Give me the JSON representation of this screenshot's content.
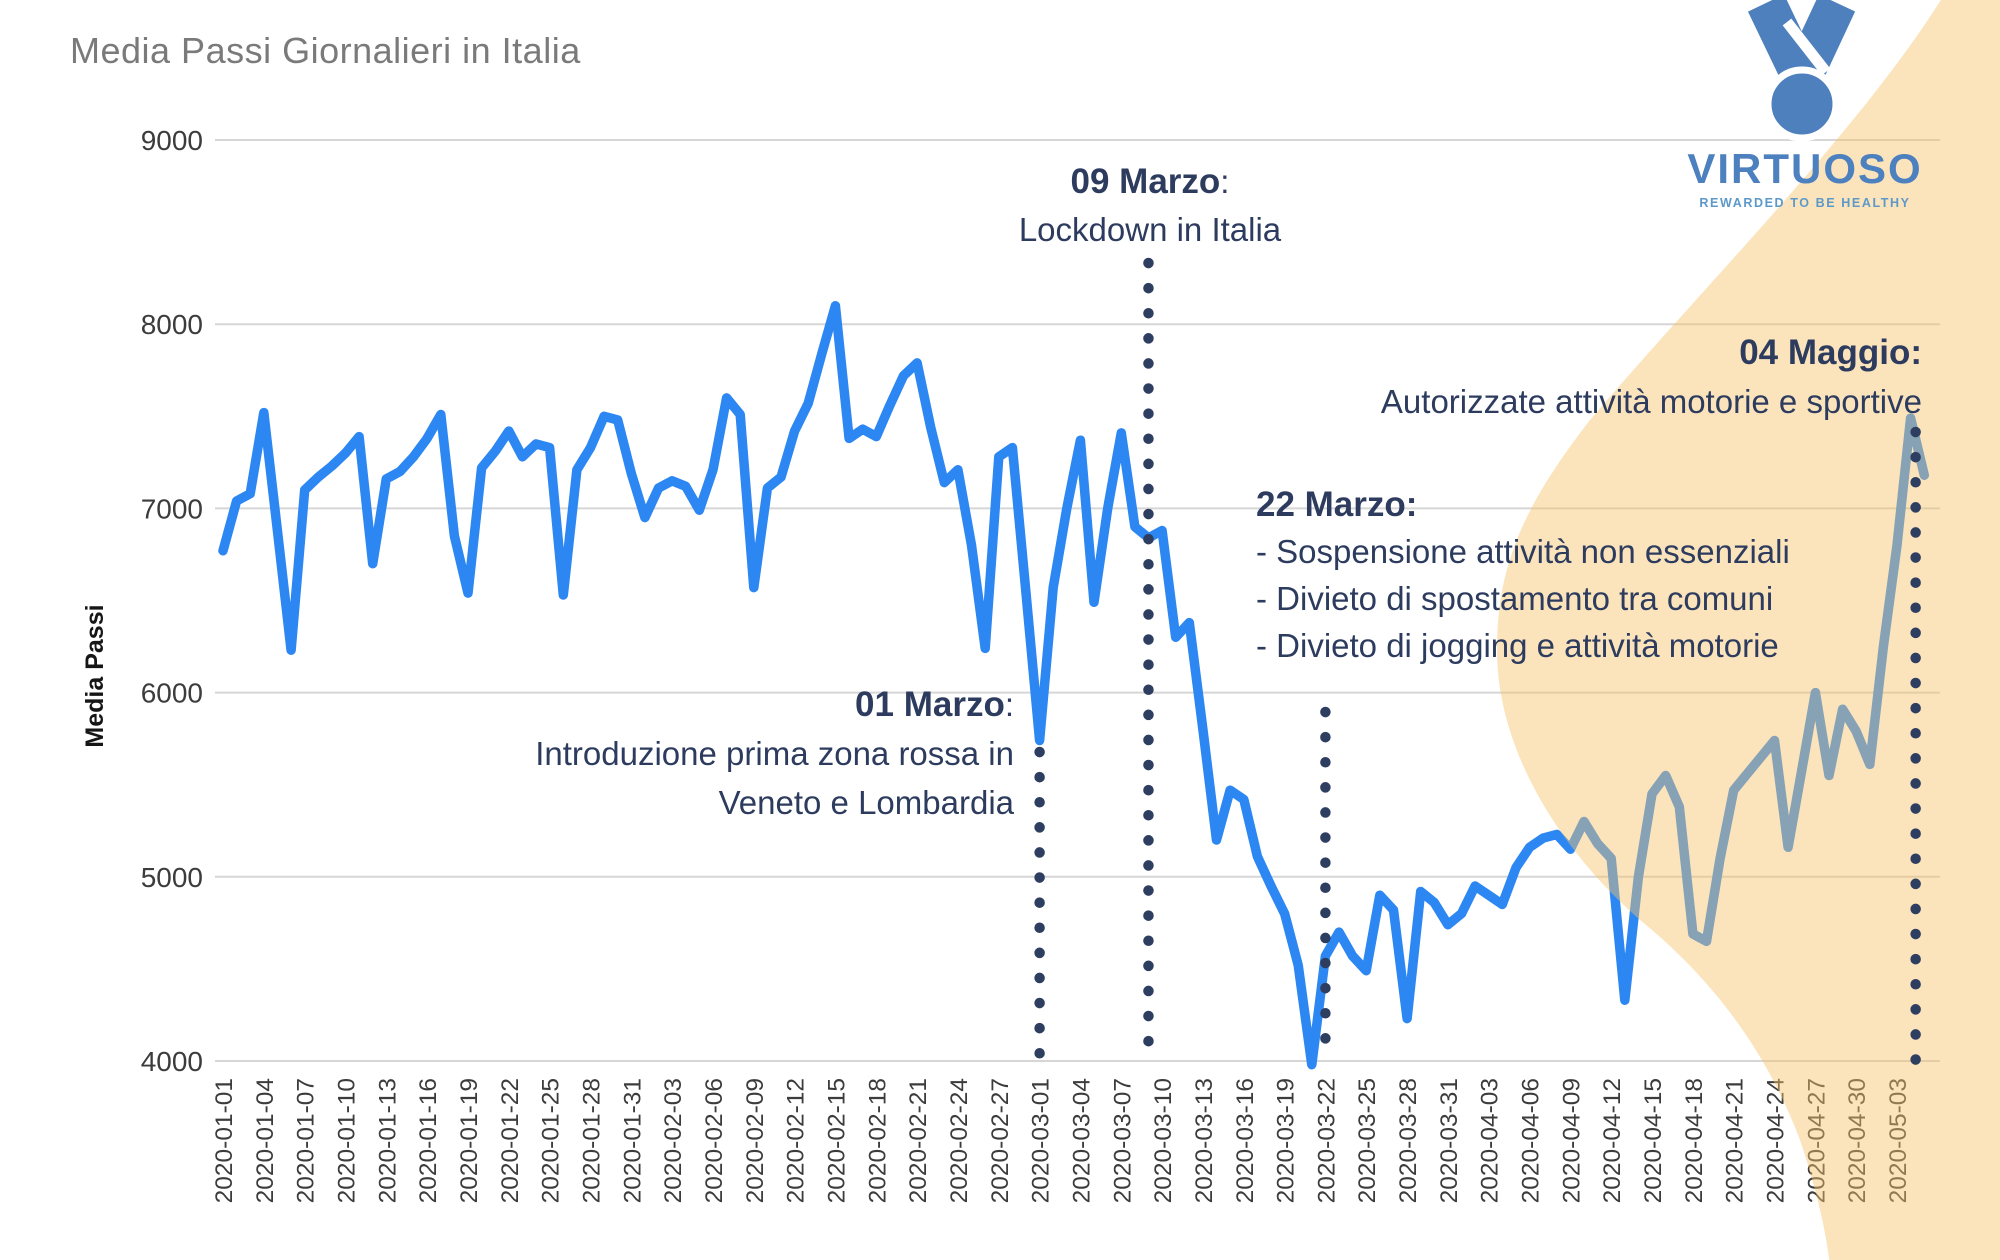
{
  "colors": {
    "line": "#2d87f2",
    "annotation_text": "#2d3c5e",
    "dotted_line": "#2e3e60",
    "highlight_blob": "rgba(246,196,106,0.45)",
    "grid": "#d6d6d6",
    "axis_text": "#3c3c3c",
    "title_text": "#7a7a7a",
    "brand_blue": "#4d80bf",
    "brand_tagline_blue": "#5c99c9"
  },
  "logo": {
    "brand": "VIRTUOSO",
    "tagline": "REWARDED TO BE HEALTHY",
    "icon": "medal-icon"
  },
  "events": [
    {
      "id": "zona-rossa",
      "date": "2020-03-01",
      "heading": "01 Marzo",
      "suffix": ":",
      "lines": [
        "Introduzione prima zona rossa in",
        "Veneto e Lombardia"
      ]
    },
    {
      "id": "lockdown",
      "date": "2020-03-09",
      "heading": "09 Marzo",
      "suffix": ":",
      "lines": [
        "Lockdown in Italia"
      ]
    },
    {
      "id": "restrizioni",
      "date": "2020-03-22",
      "heading": "22 Marzo",
      "suffix": ":",
      "lines": [
        "- Sospensione attività non essenziali",
        "- Divieto di spostamento tra comuni",
        "- Divieto di jogging e attività motorie"
      ]
    },
    {
      "id": "riapertura",
      "date": "2020-05-04",
      "heading": "04 Maggio",
      "suffix": ":",
      "lines": [
        "Autorizzate attività motorie e sportive"
      ]
    }
  ],
  "chart_data": {
    "type": "line",
    "title": "Media Passi Giornalieri in Italia",
    "ylabel": "Media Passi",
    "xlabel": "",
    "ylim": [
      4000,
      9000
    ],
    "yticks": [
      9000,
      8000,
      7000,
      6000,
      5000,
      4000
    ],
    "grid": true,
    "legend": false,
    "start_date": "2020-01-01",
    "end_date": "2020-05-05",
    "tick_every_days": 3,
    "tick_labels": [
      "2020-01-01",
      "2020-01-04",
      "2020-01-07",
      "2020-01-10",
      "2020-01-13",
      "2020-01-16",
      "2020-01-19",
      "2020-01-22",
      "2020-01-25",
      "2020-01-28",
      "2020-01-31",
      "2020-02-03",
      "2020-02-06",
      "2020-02-09",
      "2020-02-12",
      "2020-02-15",
      "2020-02-18",
      "2020-02-21",
      "2020-02-24",
      "2020-02-27",
      "2020-03-01",
      "2020-03-04",
      "2020-03-07",
      "2020-03-10",
      "2020-03-13",
      "2020-03-16",
      "2020-03-19",
      "2020-03-22",
      "2020-03-25",
      "2020-03-28",
      "2020-03-31",
      "2020-04-03",
      "2020-04-06",
      "2020-04-09",
      "2020-04-12",
      "2020-04-15",
      "2020-04-18",
      "2020-04-21",
      "2020-04-24",
      "2020-04-27",
      "2020-04-30",
      "2020-05-03"
    ],
    "series": [
      {
        "name": "Media passi giornalieri",
        "values": [
          6770,
          7040,
          7080,
          7520,
          6880,
          6230,
          7100,
          7170,
          7230,
          7300,
          7390,
          6700,
          7160,
          7200,
          7280,
          7380,
          7510,
          6850,
          6540,
          7220,
          7310,
          7420,
          7280,
          7350,
          7330,
          6530,
          7210,
          7330,
          7500,
          7480,
          7190,
          6950,
          7110,
          7150,
          7120,
          6990,
          7210,
          7600,
          7510,
          6570,
          7110,
          7170,
          7420,
          7570,
          7840,
          8100,
          7380,
          7430,
          7390,
          7560,
          7720,
          7790,
          7440,
          7140,
          7210,
          6800,
          6240,
          7280,
          7330,
          6540,
          5740,
          6570,
          7000,
          7370,
          6490,
          7000,
          7410,
          6900,
          6840,
          6880,
          6300,
          6380,
          5800,
          5200,
          5470,
          5420,
          5110,
          4950,
          4800,
          4520,
          3980,
          4570,
          4700,
          4570,
          4490,
          4900,
          4820,
          4230,
          4920,
          4860,
          4740,
          4800,
          4950,
          4900,
          4850,
          5050,
          5160,
          5210,
          5230,
          5150,
          5300,
          5180,
          5100,
          4330,
          5000,
          5450,
          5550,
          5380,
          4690,
          4650,
          5100,
          5470,
          5560,
          5650,
          5740,
          5160,
          5580,
          6000,
          5550,
          5910,
          5790,
          5610,
          6250,
          6800,
          7490,
          7180
        ]
      }
    ]
  }
}
